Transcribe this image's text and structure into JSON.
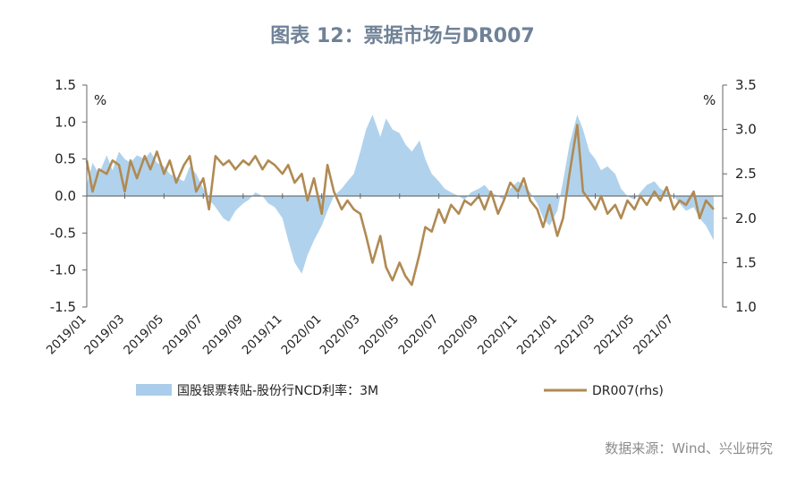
{
  "title": "图表 12：票据市场与DR007",
  "source": "数据来源：Wind、兴业研究",
  "chart_data": {
    "type": "area+line",
    "left_axis": {
      "unit": "%",
      "min": -1.5,
      "max": 1.5,
      "ticks": [
        "1.5",
        "1.0",
        "0.5",
        "0.0",
        "-0.5",
        "-1.0",
        "-1.5"
      ]
    },
    "right_axis": {
      "unit": "%",
      "min": 1.0,
      "max": 3.5,
      "ticks": [
        "3.5",
        "3.0",
        "2.5",
        "2.0",
        "1.5",
        "1.0"
      ]
    },
    "x_tick_labels": [
      "2019/01",
      "2019/03",
      "2019/05",
      "2019/07",
      "2019/09",
      "2019/11",
      "2020/01",
      "2020/03",
      "2020/05",
      "2020/07",
      "2020/09",
      "2020/11",
      "2021/01",
      "2021/03",
      "2021/05",
      "2021/07"
    ],
    "x_range_months": [
      "2019/01",
      "2021/09"
    ],
    "series": [
      {
        "name": "国股银票转贴-股份行NCD利率：3M",
        "axis": "left",
        "style": "area",
        "color": "#a9cdea",
        "points": [
          [
            "2019/01/01",
            0.15
          ],
          [
            "2019/01/10",
            0.45
          ],
          [
            "2019/01/20",
            0.3
          ],
          [
            "2019/02/01",
            0.55
          ],
          [
            "2019/02/10",
            0.35
          ],
          [
            "2019/02/20",
            0.6
          ],
          [
            "2019/03/01",
            0.5
          ],
          [
            "2019/03/10",
            0.45
          ],
          [
            "2019/03/20",
            0.55
          ],
          [
            "2019/04/01",
            0.5
          ],
          [
            "2019/04/10",
            0.6
          ],
          [
            "2019/04/20",
            0.45
          ],
          [
            "2019/05/01",
            0.4
          ],
          [
            "2019/05/10",
            0.3
          ],
          [
            "2019/05/20",
            0.25
          ],
          [
            "2019/06/01",
            0.2
          ],
          [
            "2019/06/10",
            0.4
          ],
          [
            "2019/06/20",
            0.3
          ],
          [
            "2019/07/01",
            0.1
          ],
          [
            "2019/07/10",
            -0.05
          ],
          [
            "2019/07/20",
            -0.15
          ],
          [
            "2019/08/01",
            -0.3
          ],
          [
            "2019/08/10",
            -0.35
          ],
          [
            "2019/08/20",
            -0.2
          ],
          [
            "2019/09/01",
            -0.1
          ],
          [
            "2019/09/10",
            -0.05
          ],
          [
            "2019/09/20",
            0.05
          ],
          [
            "2019/10/01",
            0.0
          ],
          [
            "2019/10/10",
            -0.1
          ],
          [
            "2019/10/20",
            -0.15
          ],
          [
            "2019/11/01",
            -0.3
          ],
          [
            "2019/11/10",
            -0.6
          ],
          [
            "2019/11/20",
            -0.9
          ],
          [
            "2019/12/01",
            -1.05
          ],
          [
            "2019/12/10",
            -0.8
          ],
          [
            "2019/12/20",
            -0.6
          ],
          [
            "2020/01/01",
            -0.4
          ],
          [
            "2020/01/10",
            -0.2
          ],
          [
            "2020/01/20",
            0.0
          ],
          [
            "2020/02/01",
            0.1
          ],
          [
            "2020/02/10",
            0.2
          ],
          [
            "2020/02/20",
            0.3
          ],
          [
            "2020/03/01",
            0.6
          ],
          [
            "2020/03/10",
            0.9
          ],
          [
            "2020/03/20",
            1.1
          ],
          [
            "2020/04/01",
            0.8
          ],
          [
            "2020/04/10",
            1.05
          ],
          [
            "2020/04/20",
            0.9
          ],
          [
            "2020/05/01",
            0.85
          ],
          [
            "2020/05/10",
            0.7
          ],
          [
            "2020/05/20",
            0.6
          ],
          [
            "2020/06/01",
            0.75
          ],
          [
            "2020/06/10",
            0.5
          ],
          [
            "2020/06/20",
            0.3
          ],
          [
            "2020/07/01",
            0.2
          ],
          [
            "2020/07/10",
            0.1
          ],
          [
            "2020/07/20",
            0.05
          ],
          [
            "2020/08/01",
            0.0
          ],
          [
            "2020/08/10",
            -0.05
          ],
          [
            "2020/08/20",
            0.05
          ],
          [
            "2020/09/01",
            0.1
          ],
          [
            "2020/09/10",
            0.15
          ],
          [
            "2020/09/20",
            0.05
          ],
          [
            "2020/10/01",
            0.0
          ],
          [
            "2020/10/10",
            -0.05
          ],
          [
            "2020/10/20",
            0.1
          ],
          [
            "2020/11/01",
            0.2
          ],
          [
            "2020/11/10",
            0.15
          ],
          [
            "2020/11/20",
            0.05
          ],
          [
            "2020/12/01",
            -0.1
          ],
          [
            "2020/12/10",
            -0.3
          ],
          [
            "2020/12/20",
            -0.4
          ],
          [
            "2021/01/01",
            -0.2
          ],
          [
            "2021/01/10",
            0.2
          ],
          [
            "2021/01/20",
            0.7
          ],
          [
            "2021/02/01",
            1.1
          ],
          [
            "2021/02/10",
            0.9
          ],
          [
            "2021/02/20",
            0.6
          ],
          [
            "2021/03/01",
            0.5
          ],
          [
            "2021/03/10",
            0.35
          ],
          [
            "2021/03/20",
            0.4
          ],
          [
            "2021/04/01",
            0.3
          ],
          [
            "2021/04/10",
            0.1
          ],
          [
            "2021/04/20",
            0.0
          ],
          [
            "2021/05/01",
            -0.05
          ],
          [
            "2021/05/10",
            0.05
          ],
          [
            "2021/05/20",
            0.15
          ],
          [
            "2021/06/01",
            0.2
          ],
          [
            "2021/06/10",
            0.1
          ],
          [
            "2021/06/20",
            0.05
          ],
          [
            "2021/07/01",
            0.0
          ],
          [
            "2021/07/10",
            -0.1
          ],
          [
            "2021/07/20",
            -0.2
          ],
          [
            "2021/08/01",
            -0.15
          ],
          [
            "2021/08/10",
            -0.3
          ],
          [
            "2021/08/20",
            -0.4
          ],
          [
            "2021/09/01",
            -0.6
          ]
        ]
      },
      {
        "name": "DR007(rhs)",
        "axis": "right",
        "style": "line",
        "color": "#b08a53",
        "points": [
          [
            "2019/01/01",
            2.65
          ],
          [
            "2019/01/10",
            2.3
          ],
          [
            "2019/01/20",
            2.55
          ],
          [
            "2019/02/01",
            2.5
          ],
          [
            "2019/02/10",
            2.65
          ],
          [
            "2019/02/20",
            2.6
          ],
          [
            "2019/03/01",
            2.3
          ],
          [
            "2019/03/10",
            2.65
          ],
          [
            "2019/03/20",
            2.45
          ],
          [
            "2019/04/01",
            2.7
          ],
          [
            "2019/04/10",
            2.55
          ],
          [
            "2019/04/20",
            2.75
          ],
          [
            "2019/05/01",
            2.5
          ],
          [
            "2019/05/10",
            2.65
          ],
          [
            "2019/05/20",
            2.4
          ],
          [
            "2019/06/01",
            2.6
          ],
          [
            "2019/06/10",
            2.7
          ],
          [
            "2019/06/20",
            2.3
          ],
          [
            "2019/07/01",
            2.45
          ],
          [
            "2019/07/10",
            2.1
          ],
          [
            "2019/07/20",
            2.7
          ],
          [
            "2019/08/01",
            2.6
          ],
          [
            "2019/08/10",
            2.65
          ],
          [
            "2019/08/20",
            2.55
          ],
          [
            "2019/09/01",
            2.65
          ],
          [
            "2019/09/10",
            2.6
          ],
          [
            "2019/09/20",
            2.7
          ],
          [
            "2019/10/01",
            2.55
          ],
          [
            "2019/10/10",
            2.65
          ],
          [
            "2019/10/20",
            2.6
          ],
          [
            "2019/11/01",
            2.5
          ],
          [
            "2019/11/10",
            2.6
          ],
          [
            "2019/11/20",
            2.4
          ],
          [
            "2019/12/01",
            2.5
          ],
          [
            "2019/12/10",
            2.2
          ],
          [
            "2019/12/20",
            2.45
          ],
          [
            "2020/01/01",
            2.05
          ],
          [
            "2020/01/10",
            2.6
          ],
          [
            "2020/01/20",
            2.3
          ],
          [
            "2020/02/01",
            2.1
          ],
          [
            "2020/02/10",
            2.2
          ],
          [
            "2020/02/20",
            2.1
          ],
          [
            "2020/03/01",
            2.05
          ],
          [
            "2020/03/10",
            1.8
          ],
          [
            "2020/03/20",
            1.5
          ],
          [
            "2020/04/01",
            1.8
          ],
          [
            "2020/04/10",
            1.45
          ],
          [
            "2020/04/20",
            1.3
          ],
          [
            "2020/05/01",
            1.5
          ],
          [
            "2020/05/10",
            1.35
          ],
          [
            "2020/05/20",
            1.25
          ],
          [
            "2020/06/01",
            1.6
          ],
          [
            "2020/06/10",
            1.9
          ],
          [
            "2020/06/20",
            1.85
          ],
          [
            "2020/07/01",
            2.1
          ],
          [
            "2020/07/10",
            1.95
          ],
          [
            "2020/07/20",
            2.15
          ],
          [
            "2020/08/01",
            2.05
          ],
          [
            "2020/08/10",
            2.2
          ],
          [
            "2020/08/20",
            2.15
          ],
          [
            "2020/09/01",
            2.25
          ],
          [
            "2020/09/10",
            2.1
          ],
          [
            "2020/09/20",
            2.3
          ],
          [
            "2020/10/01",
            2.05
          ],
          [
            "2020/10/10",
            2.2
          ],
          [
            "2020/10/20",
            2.4
          ],
          [
            "2020/11/01",
            2.3
          ],
          [
            "2020/11/10",
            2.45
          ],
          [
            "2020/11/20",
            2.2
          ],
          [
            "2020/12/01",
            2.1
          ],
          [
            "2020/12/10",
            1.9
          ],
          [
            "2020/12/20",
            2.15
          ],
          [
            "2021/01/01",
            1.8
          ],
          [
            "2021/01/10",
            2.0
          ],
          [
            "2021/01/20",
            2.5
          ],
          [
            "2021/02/01",
            3.05
          ],
          [
            "2021/02/10",
            2.3
          ],
          [
            "2021/02/20",
            2.2
          ],
          [
            "2021/03/01",
            2.1
          ],
          [
            "2021/03/10",
            2.25
          ],
          [
            "2021/03/20",
            2.05
          ],
          [
            "2021/04/01",
            2.15
          ],
          [
            "2021/04/10",
            2.0
          ],
          [
            "2021/04/20",
            2.2
          ],
          [
            "2021/05/01",
            2.1
          ],
          [
            "2021/05/10",
            2.25
          ],
          [
            "2021/05/20",
            2.15
          ],
          [
            "2021/06/01",
            2.3
          ],
          [
            "2021/06/10",
            2.2
          ],
          [
            "2021/06/20",
            2.35
          ],
          [
            "2021/07/01",
            2.1
          ],
          [
            "2021/07/10",
            2.2
          ],
          [
            "2021/07/20",
            2.15
          ],
          [
            "2021/08/01",
            2.3
          ],
          [
            "2021/08/10",
            2.0
          ],
          [
            "2021/08/20",
            2.2
          ],
          [
            "2021/09/01",
            2.1
          ]
        ]
      }
    ]
  }
}
